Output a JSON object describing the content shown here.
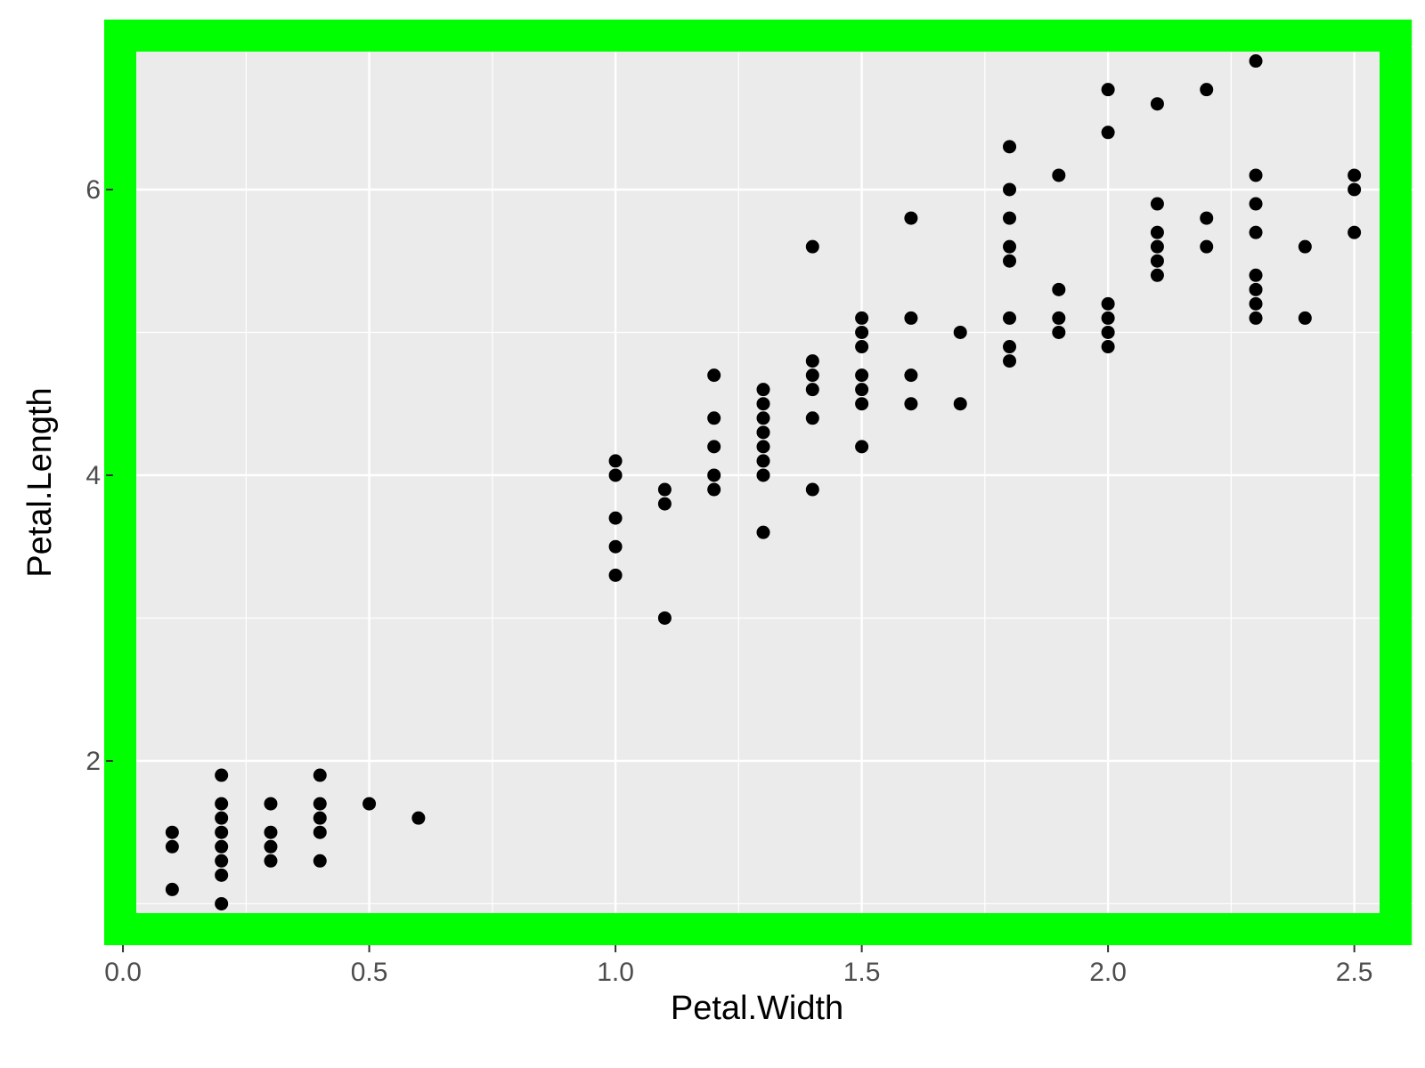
{
  "chart_data": {
    "type": "scatter",
    "title": "",
    "xlabel": "Petal.Width",
    "ylabel": "Petal.Length",
    "xlim": [
      -0.02,
      2.62
    ],
    "ylim": [
      0.71,
      7.19
    ],
    "x_ticks": [
      0.0,
      0.5,
      1.0,
      1.5,
      2.0,
      2.5
    ],
    "x_tick_labels": [
      "0.0",
      "0.5",
      "1.0",
      "1.5",
      "2.0",
      "2.5"
    ],
    "y_ticks": [
      2,
      4,
      6
    ],
    "y_tick_labels": [
      "2",
      "4",
      "6"
    ],
    "grid": true,
    "panel_background": "#ebebeb",
    "grid_color": "#ffffff",
    "point_color": "#000000",
    "highlight_border_color": "#00ff00",
    "points": [
      [
        0.1,
        1.5
      ],
      [
        0.1,
        1.4
      ],
      [
        0.1,
        1.1
      ],
      [
        0.2,
        1.9
      ],
      [
        0.2,
        1.7
      ],
      [
        0.2,
        1.6
      ],
      [
        0.2,
        1.5
      ],
      [
        0.2,
        1.4
      ],
      [
        0.2,
        1.3
      ],
      [
        0.2,
        1.2
      ],
      [
        0.2,
        1.0
      ],
      [
        0.3,
        1.7
      ],
      [
        0.3,
        1.5
      ],
      [
        0.3,
        1.4
      ],
      [
        0.3,
        1.3
      ],
      [
        0.4,
        1.9
      ],
      [
        0.4,
        1.7
      ],
      [
        0.4,
        1.6
      ],
      [
        0.4,
        1.5
      ],
      [
        0.4,
        1.3
      ],
      [
        0.5,
        1.7
      ],
      [
        0.6,
        1.6
      ],
      [
        1.0,
        4.1
      ],
      [
        1.0,
        4.0
      ],
      [
        1.0,
        3.7
      ],
      [
        1.0,
        3.5
      ],
      [
        1.0,
        3.3
      ],
      [
        1.1,
        3.9
      ],
      [
        1.1,
        3.8
      ],
      [
        1.1,
        3.0
      ],
      [
        1.2,
        4.7
      ],
      [
        1.2,
        4.4
      ],
      [
        1.2,
        4.2
      ],
      [
        1.2,
        4.0
      ],
      [
        1.2,
        3.9
      ],
      [
        1.3,
        4.6
      ],
      [
        1.3,
        4.5
      ],
      [
        1.3,
        4.4
      ],
      [
        1.3,
        4.3
      ],
      [
        1.3,
        4.2
      ],
      [
        1.3,
        4.1
      ],
      [
        1.3,
        4.0
      ],
      [
        1.3,
        3.6
      ],
      [
        1.4,
        5.6
      ],
      [
        1.4,
        4.8
      ],
      [
        1.4,
        4.7
      ],
      [
        1.4,
        4.6
      ],
      [
        1.4,
        4.4
      ],
      [
        1.4,
        3.9
      ],
      [
        1.5,
        5.1
      ],
      [
        1.5,
        5.0
      ],
      [
        1.5,
        4.9
      ],
      [
        1.5,
        4.7
      ],
      [
        1.5,
        4.6
      ],
      [
        1.5,
        4.5
      ],
      [
        1.5,
        4.2
      ],
      [
        1.6,
        5.8
      ],
      [
        1.6,
        5.1
      ],
      [
        1.6,
        4.7
      ],
      [
        1.6,
        4.5
      ],
      [
        1.7,
        5.0
      ],
      [
        1.7,
        4.5
      ],
      [
        1.8,
        6.3
      ],
      [
        1.8,
        6.0
      ],
      [
        1.8,
        5.8
      ],
      [
        1.8,
        5.6
      ],
      [
        1.8,
        5.5
      ],
      [
        1.8,
        5.1
      ],
      [
        1.8,
        4.9
      ],
      [
        1.8,
        4.8
      ],
      [
        1.9,
        6.1
      ],
      [
        1.9,
        5.3
      ],
      [
        1.9,
        5.1
      ],
      [
        1.9,
        5.0
      ],
      [
        2.0,
        6.7
      ],
      [
        2.0,
        6.4
      ],
      [
        2.0,
        5.2
      ],
      [
        2.0,
        5.1
      ],
      [
        2.0,
        5.0
      ],
      [
        2.0,
        4.9
      ],
      [
        2.1,
        6.6
      ],
      [
        2.1,
        5.9
      ],
      [
        2.1,
        5.7
      ],
      [
        2.1,
        5.6
      ],
      [
        2.1,
        5.5
      ],
      [
        2.1,
        5.4
      ],
      [
        2.2,
        6.7
      ],
      [
        2.2,
        5.8
      ],
      [
        2.2,
        5.6
      ],
      [
        2.3,
        6.9
      ],
      [
        2.3,
        6.1
      ],
      [
        2.3,
        5.9
      ],
      [
        2.3,
        5.7
      ],
      [
        2.3,
        5.4
      ],
      [
        2.3,
        5.3
      ],
      [
        2.3,
        5.2
      ],
      [
        2.3,
        5.1
      ],
      [
        2.4,
        5.6
      ],
      [
        2.4,
        5.1
      ],
      [
        2.5,
        6.1
      ],
      [
        2.5,
        6.0
      ],
      [
        2.5,
        5.7
      ]
    ]
  }
}
